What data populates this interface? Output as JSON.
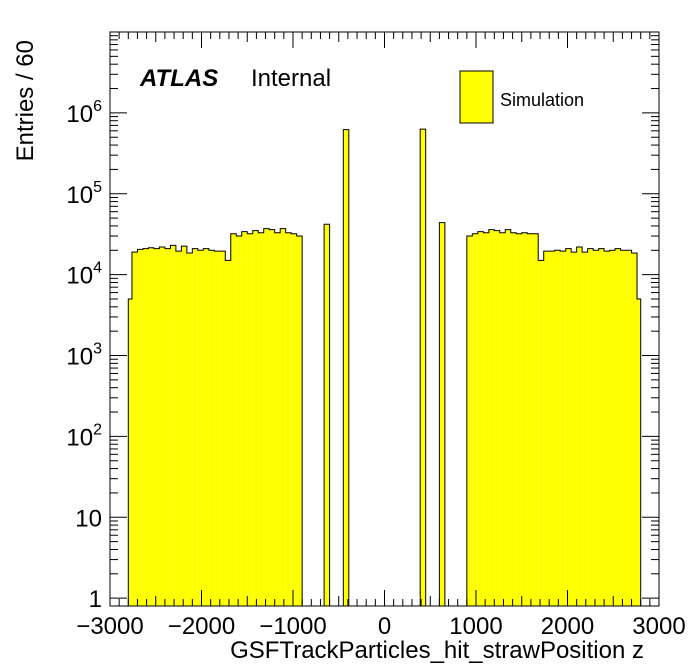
{
  "chart_data": {
    "type": "bar",
    "style": "step-histogram",
    "xlabel": "GSFTrackParticles_hit_strawPosition z",
    "ylabel": "Entries / 60",
    "atlas_label": "ATLAS",
    "atlas_status": "Internal",
    "legend": {
      "position": "top-right",
      "entries": [
        "Simulation"
      ]
    },
    "xlim": [
      -3000,
      3000
    ],
    "ylim": [
      0.8,
      10000000
    ],
    "yscale": "log",
    "grid": false,
    "fill_color": "#ffff00",
    "line_color": "#000000",
    "bin_width": 60,
    "x_ticks": [
      "−3000",
      "−2000",
      "−1000",
      "0",
      "1000",
      "2000",
      "3000"
    ],
    "y_ticks": [
      {
        "value": 1,
        "base": "1",
        "exp": ""
      },
      {
        "value": 10,
        "base": "10",
        "exp": ""
      },
      {
        "value": 100,
        "base": "10",
        "exp": "2"
      },
      {
        "value": 1000,
        "base": "10",
        "exp": "3"
      },
      {
        "value": 10000,
        "base": "10",
        "exp": "4"
      },
      {
        "value": 100000,
        "base": "10",
        "exp": "5"
      },
      {
        "value": 1000000,
        "base": "10",
        "exp": "6"
      }
    ],
    "series": [
      {
        "bins": [
          {
            "x0": -2800,
            "x1": -2760,
            "y": 5000
          },
          {
            "x0": -2760,
            "x1": -2700,
            "y": 19000
          },
          {
            "x0": -2700,
            "x1": -2640,
            "y": 20500
          },
          {
            "x0": -2640,
            "x1": -2580,
            "y": 21000
          },
          {
            "x0": -2580,
            "x1": -2520,
            "y": 21500
          },
          {
            "x0": -2520,
            "x1": -2460,
            "y": 21000
          },
          {
            "x0": -2460,
            "x1": -2400,
            "y": 22000
          },
          {
            "x0": -2400,
            "x1": -2340,
            "y": 21000
          },
          {
            "x0": -2340,
            "x1": -2280,
            "y": 23000
          },
          {
            "x0": -2280,
            "x1": -2220,
            "y": 19500
          },
          {
            "x0": -2220,
            "x1": -2160,
            "y": 22500
          },
          {
            "x0": -2160,
            "x1": -2100,
            "y": 18500
          },
          {
            "x0": -2100,
            "x1": -2040,
            "y": 21000
          },
          {
            "x0": -2040,
            "x1": -1980,
            "y": 20000
          },
          {
            "x0": -1980,
            "x1": -1920,
            "y": 21000
          },
          {
            "x0": -1920,
            "x1": -1860,
            "y": 20000
          },
          {
            "x0": -1860,
            "x1": -1800,
            "y": 19500
          },
          {
            "x0": -1800,
            "x1": -1740,
            "y": 19500
          },
          {
            "x0": -1740,
            "x1": -1680,
            "y": 15000
          },
          {
            "x0": -1680,
            "x1": -1620,
            "y": 32000
          },
          {
            "x0": -1620,
            "x1": -1560,
            "y": 30000
          },
          {
            "x0": -1560,
            "x1": -1500,
            "y": 34000
          },
          {
            "x0": -1500,
            "x1": -1440,
            "y": 32000
          },
          {
            "x0": -1440,
            "x1": -1380,
            "y": 35000
          },
          {
            "x0": -1380,
            "x1": -1320,
            "y": 33000
          },
          {
            "x0": -1320,
            "x1": -1260,
            "y": 37000
          },
          {
            "x0": -1260,
            "x1": -1200,
            "y": 36000
          },
          {
            "x0": -1200,
            "x1": -1140,
            "y": 33000
          },
          {
            "x0": -1140,
            "x1": -1080,
            "y": 37000
          },
          {
            "x0": -1080,
            "x1": -1020,
            "y": 33000
          },
          {
            "x0": -1020,
            "x1": -960,
            "y": 32000
          },
          {
            "x0": -960,
            "x1": -900,
            "y": 30000
          },
          {
            "x0": -660,
            "x1": -600,
            "y": 42000
          },
          {
            "x0": -450,
            "x1": -390,
            "y": 620000
          },
          {
            "x0": 390,
            "x1": 450,
            "y": 630000
          },
          {
            "x0": 600,
            "x1": 660,
            "y": 44000
          },
          {
            "x0": 900,
            "x1": 960,
            "y": 30000
          },
          {
            "x0": 960,
            "x1": 1020,
            "y": 32000
          },
          {
            "x0": 1020,
            "x1": 1080,
            "y": 34000
          },
          {
            "x0": 1080,
            "x1": 1140,
            "y": 33000
          },
          {
            "x0": 1140,
            "x1": 1200,
            "y": 36000
          },
          {
            "x0": 1200,
            "x1": 1260,
            "y": 35000
          },
          {
            "x0": 1260,
            "x1": 1320,
            "y": 33000
          },
          {
            "x0": 1320,
            "x1": 1380,
            "y": 36000
          },
          {
            "x0": 1380,
            "x1": 1440,
            "y": 33000
          },
          {
            "x0": 1440,
            "x1": 1500,
            "y": 32000
          },
          {
            "x0": 1500,
            "x1": 1560,
            "y": 33000
          },
          {
            "x0": 1560,
            "x1": 1620,
            "y": 32000
          },
          {
            "x0": 1620,
            "x1": 1680,
            "y": 32000
          },
          {
            "x0": 1680,
            "x1": 1740,
            "y": 15000
          },
          {
            "x0": 1740,
            "x1": 1800,
            "y": 19500
          },
          {
            "x0": 1800,
            "x1": 1860,
            "y": 19500
          },
          {
            "x0": 1860,
            "x1": 1920,
            "y": 20000
          },
          {
            "x0": 1920,
            "x1": 1980,
            "y": 19500
          },
          {
            "x0": 1980,
            "x1": 2040,
            "y": 21000
          },
          {
            "x0": 2040,
            "x1": 2100,
            "y": 19000
          },
          {
            "x0": 2100,
            "x1": 2160,
            "y": 22000
          },
          {
            "x0": 2160,
            "x1": 2220,
            "y": 19000
          },
          {
            "x0": 2220,
            "x1": 2280,
            "y": 21000
          },
          {
            "x0": 2280,
            "x1": 2340,
            "y": 20000
          },
          {
            "x0": 2340,
            "x1": 2400,
            "y": 21000
          },
          {
            "x0": 2400,
            "x1": 2460,
            "y": 19500
          },
          {
            "x0": 2460,
            "x1": 2520,
            "y": 20000
          },
          {
            "x0": 2520,
            "x1": 2580,
            "y": 21000
          },
          {
            "x0": 2580,
            "x1": 2640,
            "y": 20000
          },
          {
            "x0": 2640,
            "x1": 2700,
            "y": 20000
          },
          {
            "x0": 2700,
            "x1": 2760,
            "y": 18500
          },
          {
            "x0": 2760,
            "x1": 2800,
            "y": 5000
          }
        ]
      }
    ]
  }
}
